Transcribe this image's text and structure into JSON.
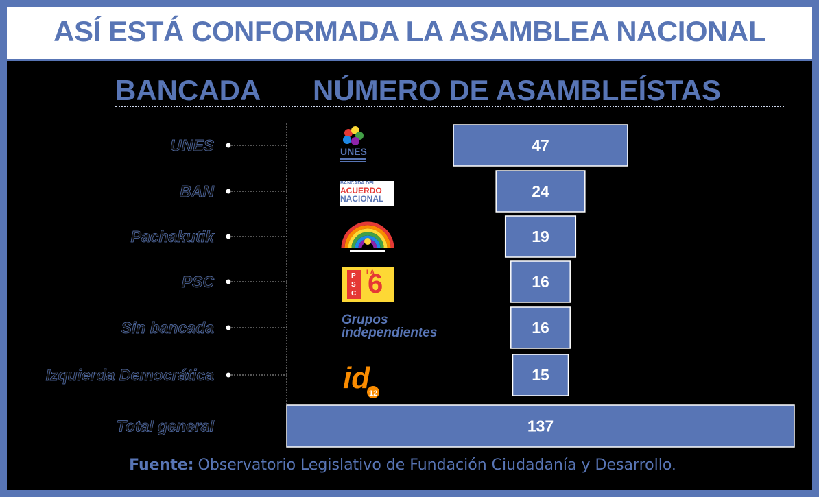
{
  "title": "ASÍ ESTÁ CONFORMADA LA ASAMBLEA NACIONAL",
  "column_headers": {
    "bancada": "BANCADA",
    "numero": "NÚMERO DE ASAMBLEÍSTAS"
  },
  "logos": {
    "unes": "UNES",
    "ban": [
      "BANCADA DEL",
      "ACUERDO",
      "NACIONAL"
    ],
    "psc": [
      "P",
      "S",
      "C",
      "LA",
      "6"
    ],
    "sin_bancada": [
      "Grupos",
      "independientes"
    ],
    "id": [
      "id",
      "12"
    ]
  },
  "chart_data": {
    "type": "bar",
    "categories": [
      "UNES",
      "BAN",
      "Pachakutik",
      "PSC",
      "Sin bancada",
      "Izquierda Democrática"
    ],
    "values": [
      47,
      24,
      19,
      16,
      16,
      15
    ],
    "total_label": "Total general",
    "total_value": 137,
    "colors": {
      "bar": "#5875b5",
      "background": "#000000",
      "text": "#ffffff"
    }
  },
  "source": {
    "label": "Fuente:",
    "text": "Observatorio Legislativo de Fundación Ciudadanía y Desarrollo."
  }
}
